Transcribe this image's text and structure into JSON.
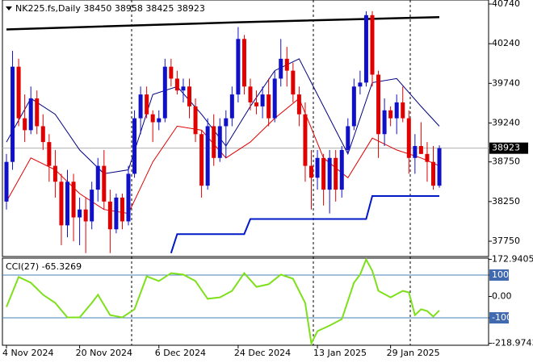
{
  "chart_data": [
    {
      "type": "candlestick",
      "title": "NK225.fs,Daily  38450 38958 38425 38923",
      "categories": [
        "4 Nov 2024",
        null,
        null,
        null,
        null,
        null,
        null,
        null,
        null,
        null,
        null,
        null,
        "20 Nov 2024",
        null,
        null,
        null,
        null,
        null,
        null,
        null,
        null,
        null,
        null,
        null,
        null,
        "6 Dec 2024",
        null,
        null,
        null,
        null,
        null,
        null,
        null,
        null,
        null,
        null,
        null,
        null,
        "24 Dec 2024",
        null,
        null,
        null,
        null,
        null,
        null,
        null,
        null,
        null,
        null,
        null,
        null,
        "13 Jan 2025",
        null,
        null,
        null,
        null,
        null,
        null,
        null,
        null,
        null,
        null,
        null,
        "29 Jan 2025",
        null,
        null,
        null,
        null,
        null,
        null,
        null,
        null
      ],
      "open": [
        38250,
        38750,
        39950,
        39300,
        39150,
        39550,
        39200,
        39000,
        38700,
        38500,
        37950,
        38500,
        38050,
        38150,
        38000,
        38400,
        38700,
        38250,
        37900,
        38300,
        38000,
        38600,
        39300,
        39600,
        39350,
        39250,
        39300,
        39950,
        39800,
        39650,
        39700,
        39450,
        39100,
        38450,
        39200,
        38800,
        39200,
        39300,
        39600,
        40300,
        39700,
        39500,
        39450,
        39600,
        39300,
        39800,
        40050,
        39900,
        39600,
        39350,
        38700,
        38550,
        38800,
        38400,
        38800,
        38400,
        38900,
        39200,
        39700,
        39750,
        40600,
        39850,
        39100,
        39400,
        39300,
        39500,
        39300,
        38800,
        38950,
        38850,
        38750,
        38450
      ],
      "high": [
        38850,
        40150,
        40050,
        39600,
        39700,
        39650,
        39350,
        39100,
        38900,
        38600,
        38650,
        38600,
        38300,
        38300,
        38500,
        38800,
        38900,
        38400,
        38350,
        38350,
        38700,
        39400,
        39700,
        39700,
        39400,
        39400,
        40050,
        40050,
        39900,
        39800,
        39800,
        39550,
        39150,
        39300,
        39350,
        39300,
        39400,
        39700,
        40450,
        40350,
        39800,
        39650,
        39700,
        39800,
        39900,
        40300,
        40200,
        40000,
        39700,
        39500,
        38900,
        38900,
        38850,
        38900,
        38900,
        38950,
        39300,
        39800,
        39900,
        40650,
        40650,
        39900,
        39550,
        39450,
        39600,
        39700,
        39400,
        39100,
        39250,
        39000,
        38950,
        38958
      ],
      "low": [
        38150,
        38650,
        39200,
        39000,
        39100,
        39100,
        38900,
        38500,
        38300,
        37700,
        37800,
        37750,
        37700,
        37600,
        37900,
        38250,
        38150,
        37600,
        37850,
        37900,
        37950,
        38550,
        39100,
        39300,
        39000,
        39150,
        39250,
        39700,
        39600,
        39500,
        39300,
        39000,
        38300,
        38400,
        38700,
        38750,
        38800,
        39200,
        39500,
        39600,
        39400,
        39350,
        39300,
        39200,
        39250,
        39700,
        39700,
        39500,
        39200,
        38500,
        38150,
        38400,
        38200,
        38100,
        38250,
        38300,
        38850,
        39150,
        39600,
        39700,
        39700,
        38800,
        38950,
        39200,
        39100,
        39250,
        38600,
        38600,
        38850,
        38500,
        38400,
        38425
      ],
      "close": [
        38750,
        39950,
        39300,
        39150,
        39550,
        39200,
        39000,
        38700,
        38500,
        37950,
        38500,
        38050,
        38150,
        38000,
        38400,
        38700,
        38250,
        37900,
        38300,
        38000,
        38600,
        39300,
        39600,
        39350,
        39250,
        39300,
        39950,
        39800,
        39650,
        39700,
        39450,
        39100,
        38450,
        39200,
        38800,
        39200,
        39300,
        39600,
        40300,
        39700,
        39500,
        39450,
        39600,
        39300,
        39800,
        40050,
        39900,
        39600,
        39350,
        38700,
        38550,
        38800,
        38400,
        38800,
        38400,
        38900,
        39200,
        39700,
        39750,
        40600,
        39850,
        39100,
        39400,
        39300,
        39500,
        39300,
        38800,
        38950,
        38850,
        38750,
        38450,
        38923
      ],
      "up_color": "#1010c8",
      "down_color": "#e00000",
      "lines": [
        {
          "color": "#000000",
          "width": 2.5,
          "x": [
            0,
            38,
            71
          ],
          "values": [
            40420,
            40510,
            40575
          ]
        },
        {
          "color": "#000080",
          "width": 1,
          "x": [
            0,
            4,
            8,
            12,
            16,
            20,
            24,
            28,
            32,
            36,
            40,
            44,
            48,
            52,
            56,
            60,
            64,
            68,
            71
          ],
          "values": [
            39000,
            39550,
            39350,
            38900,
            38600,
            38650,
            39600,
            39700,
            39350,
            38950,
            39450,
            39900,
            40050,
            39450,
            38850,
            39750,
            39800,
            39450,
            39200
          ]
        },
        {
          "color": "#e00000",
          "width": 1,
          "x": [
            0,
            4,
            8,
            12,
            16,
            20,
            24,
            28,
            32,
            36,
            40,
            44,
            48,
            52,
            56,
            60,
            64,
            68,
            71
          ],
          "values": [
            38250,
            38800,
            38650,
            38350,
            38150,
            38100,
            38750,
            39200,
            39150,
            38800,
            39000,
            39300,
            39550,
            38800,
            38550,
            39050,
            38900,
            38800,
            38700
          ]
        },
        {
          "color": "#0018c8",
          "width": 2,
          "x": [
            27,
            28,
            39,
            40,
            59,
            60,
            71
          ],
          "values": [
            37600,
            37840,
            37840,
            38030,
            38030,
            38320,
            38320
          ]
        }
      ],
      "ylim": [
        37557,
        40791
      ],
      "yticks": [
        40740,
        40240,
        39740,
        39240,
        38750,
        38250,
        37750
      ]
    },
    {
      "type": "line",
      "label": "CCI(27) -65.3269",
      "color": "#7ee01a",
      "x": [
        0,
        2,
        4,
        6,
        8,
        10,
        12,
        14,
        15,
        17,
        19,
        21,
        23,
        25,
        27,
        29,
        31,
        33,
        35,
        37,
        39,
        41,
        43,
        45,
        47,
        49,
        50,
        51,
        53,
        55,
        57,
        58,
        59,
        60,
        61,
        63,
        65,
        66,
        67,
        68,
        69,
        70,
        71
      ],
      "values": [
        -49,
        91,
        64,
        8,
        -30,
        -98,
        -98,
        -30,
        8,
        -87,
        -98,
        -60,
        94,
        72,
        109,
        102,
        72,
        -11,
        -4,
        26,
        109,
        45,
        57,
        102,
        83,
        -30,
        -218.9743,
        -162,
        -136,
        -106,
        64,
        102,
        172.9405,
        120,
        26,
        -4,
        26,
        19,
        -87,
        -60,
        -68,
        -94,
        -65.3269
      ],
      "levels": [
        100,
        -100
      ],
      "ylim": [
        -228,
        179
      ],
      "yticks": [
        172.9405,
        100,
        {
          "value": 0,
          "label": "0.00"
        },
        -100,
        -218.9743
      ]
    }
  ]
}
